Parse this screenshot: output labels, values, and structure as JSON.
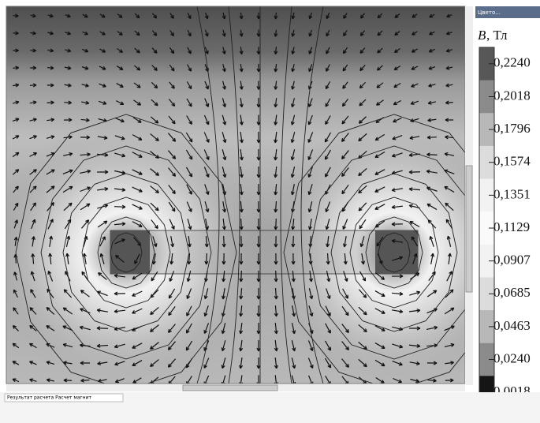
{
  "panel": {
    "title": "Цвето..."
  },
  "legend": {
    "quantity": "B",
    "unit": ", Тл",
    "ticks": [
      "0,2240",
      "0,2018",
      "0,1796",
      "0,1574",
      "0,1351",
      "0,1129",
      "0,0907",
      "0,0685",
      "0,0463",
      "0,0240",
      "0,0018"
    ]
  },
  "status_tab": "Результат расчета Расчет магнит"
}
